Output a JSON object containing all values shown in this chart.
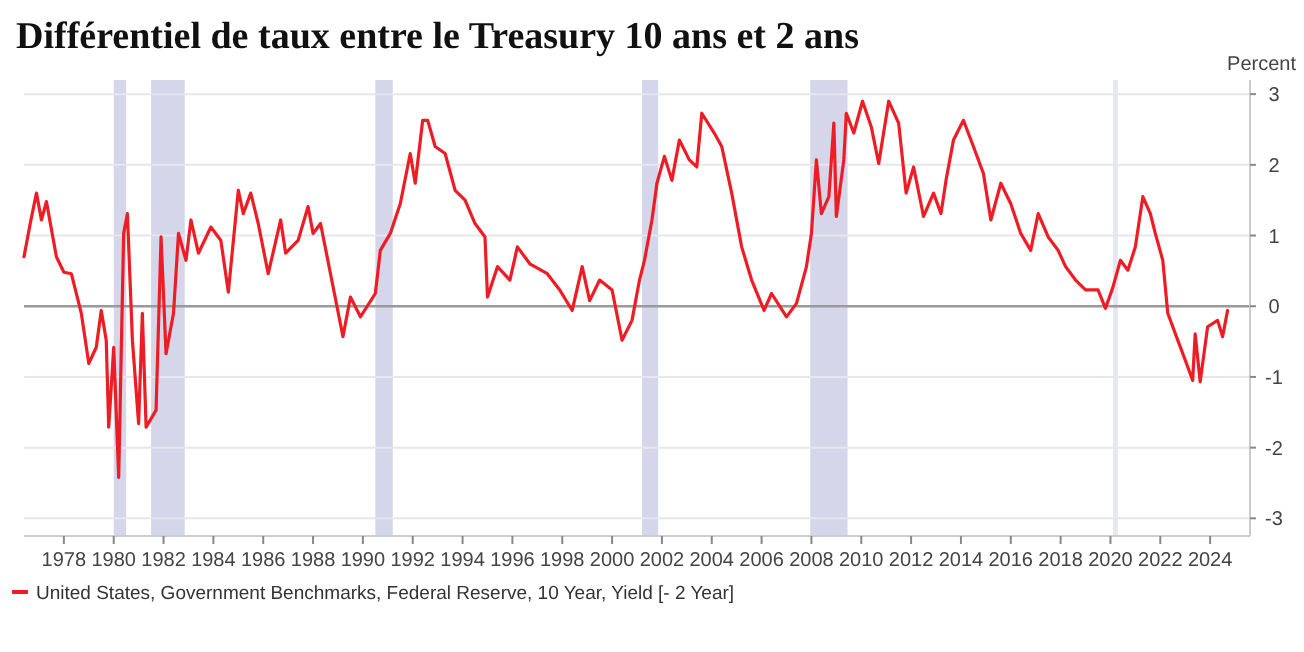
{
  "chart_data": {
    "type": "line",
    "title": "Différentiel de taux entre le Treasury 10 ans et 2 ans",
    "ylabel": "Percent",
    "x": [
      1976.4,
      1976.65,
      1976.9,
      1977.1,
      1977.3,
      1977.7,
      1978.0,
      1978.3,
      1978.7,
      1979.0,
      1979.3,
      1979.5,
      1979.7,
      1979.8,
      1980.0,
      1980.2,
      1980.4,
      1980.55,
      1980.75,
      1981.0,
      1981.15,
      1981.3,
      1981.7,
      1981.9,
      1982.1,
      1982.4,
      1982.6,
      1982.9,
      1983.1,
      1983.4,
      1983.9,
      1984.3,
      1984.6,
      1985.0,
      1985.2,
      1985.5,
      1985.8,
      1986.2,
      1986.7,
      1986.9,
      1987.4,
      1987.8,
      1988.0,
      1988.3,
      1988.7,
      1989.2,
      1989.5,
      1989.9,
      1990.5,
      1990.7,
      1991.1,
      1991.5,
      1991.9,
      1992.1,
      1992.4,
      1992.6,
      1992.9,
      1993.3,
      1993.7,
      1994.1,
      1994.5,
      1994.9,
      1995.0,
      1995.4,
      1995.9,
      1996.2,
      1996.7,
      1997.4,
      1997.9,
      1998.4,
      1998.8,
      1999.1,
      1999.5,
      2000.0,
      2000.4,
      2000.8,
      2001.1,
      2001.3,
      2001.6,
      2001.8,
      2002.1,
      2002.4,
      2002.7,
      2003.1,
      2003.4,
      2003.6,
      2004.1,
      2004.4,
      2004.8,
      2005.2,
      2005.6,
      2006.1,
      2006.4,
      2007.0,
      2007.4,
      2007.8,
      2008.0,
      2008.2,
      2008.4,
      2008.7,
      2008.9,
      2009.0,
      2009.3,
      2009.4,
      2009.7,
      2010.05,
      2010.4,
      2010.7,
      2011.1,
      2011.5,
      2011.8,
      2012.1,
      2012.5,
      2012.9,
      2013.2,
      2013.4,
      2013.7,
      2014.1,
      2014.5,
      2014.9,
      2015.2,
      2015.6,
      2016.0,
      2016.4,
      2016.8,
      2017.1,
      2017.5,
      2017.9,
      2018.2,
      2018.6,
      2019.0,
      2019.5,
      2019.8,
      2020.1,
      2020.4,
      2020.7,
      2021.0,
      2021.3,
      2021.6,
      2021.8,
      2022.1,
      2022.3,
      2022.7,
      2023.0,
      2023.3,
      2023.4,
      2023.6,
      2023.9,
      2024.3,
      2024.5,
      2024.7
    ],
    "series": [
      {
        "name": "United States, Government Benchmarks, Federal Reserve, 10 Year, Yield [- 2 Year]",
        "color": "#ee1c25",
        "values": [
          0.7,
          1.17,
          1.6,
          1.22,
          1.48,
          0.7,
          0.48,
          0.46,
          -0.1,
          -0.81,
          -0.58,
          -0.06,
          -0.48,
          -1.71,
          -0.58,
          -2.42,
          1.03,
          1.31,
          -0.48,
          -1.66,
          -0.1,
          -1.71,
          -1.47,
          0.98,
          -0.67,
          -0.1,
          1.03,
          0.65,
          1.22,
          0.75,
          1.12,
          0.93,
          0.2,
          1.64,
          1.31,
          1.6,
          1.17,
          0.46,
          1.22,
          0.75,
          0.93,
          1.41,
          1.03,
          1.17,
          0.46,
          -0.43,
          0.13,
          -0.15,
          0.18,
          0.79,
          1.03,
          1.45,
          2.16,
          1.74,
          2.63,
          2.63,
          2.26,
          2.16,
          1.64,
          1.5,
          1.17,
          0.98,
          0.13,
          0.56,
          0.37,
          0.84,
          0.6,
          0.46,
          0.23,
          -0.06,
          0.56,
          0.08,
          0.37,
          0.23,
          -0.48,
          -0.2,
          0.37,
          0.65,
          1.22,
          1.74,
          2.12,
          1.78,
          2.35,
          2.07,
          1.97,
          2.73,
          2.45,
          2.26,
          1.6,
          0.84,
          0.37,
          -0.06,
          0.18,
          -0.15,
          0.04,
          0.56,
          1.03,
          2.07,
          1.31,
          1.55,
          2.59,
          1.27,
          2.07,
          2.73,
          2.45,
          2.9,
          2.54,
          2.02,
          2.9,
          2.59,
          1.6,
          1.97,
          1.27,
          1.6,
          1.31,
          1.78,
          2.35,
          2.63,
          2.26,
          1.88,
          1.22,
          1.74,
          1.45,
          1.03,
          0.79,
          1.31,
          0.98,
          0.79,
          0.56,
          0.37,
          0.23,
          0.23,
          -0.03,
          0.27,
          0.65,
          0.51,
          0.84,
          1.55,
          1.31,
          1.03,
          0.65,
          -0.1,
          -0.48,
          -0.76,
          -1.05,
          -0.39,
          -1.07,
          -0.29,
          -0.2,
          -0.43,
          -0.06
        ]
      }
    ],
    "xlim": [
      1976.4,
      2025.6
    ],
    "xticks": [
      1978,
      1980,
      1982,
      1984,
      1986,
      1988,
      1990,
      1992,
      1994,
      1996,
      1998,
      2000,
      2002,
      2004,
      2006,
      2008,
      2010,
      2012,
      2014,
      2016,
      2018,
      2020,
      2022,
      2024
    ],
    "ylim": [
      -3.25,
      3.2
    ],
    "yticks": [
      -3,
      -2,
      -1,
      0,
      1,
      2,
      3
    ],
    "bands": [
      {
        "axis": "x",
        "from": 1980.0,
        "to": 1980.5,
        "color": "#d5d6ea"
      },
      {
        "axis": "x",
        "from": 1981.5,
        "to": 1982.85,
        "color": "#d5d6ea"
      },
      {
        "axis": "x",
        "from": 1990.5,
        "to": 1991.2,
        "color": "#d5d6ea"
      },
      {
        "axis": "x",
        "from": 2001.2,
        "to": 2001.85,
        "color": "#d5d6ea"
      },
      {
        "axis": "x",
        "from": 2007.95,
        "to": 2009.45,
        "color": "#d5d6ea"
      },
      {
        "axis": "x",
        "from": 2020.1,
        "to": 2020.3,
        "color": "#e6e7f2"
      }
    ],
    "ref_lines": [
      {
        "axis": "y",
        "value": 0,
        "color": "#9a9a9a"
      }
    ],
    "grid": "y",
    "legend": "bottom",
    "line_style": "solid"
  }
}
